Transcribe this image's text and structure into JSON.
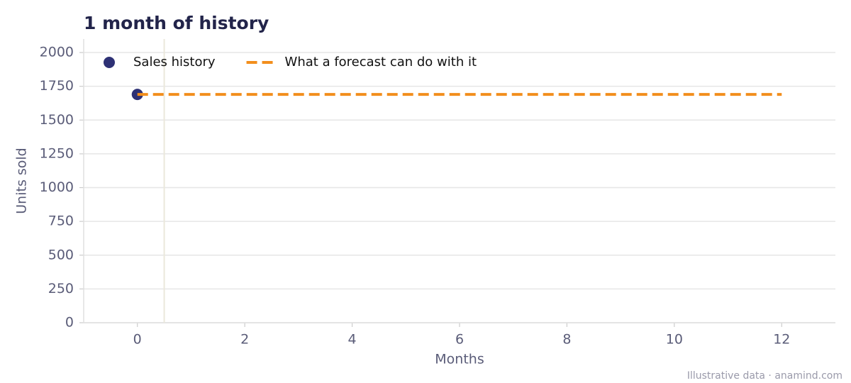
{
  "chart_data": {
    "type": "line",
    "title": "1 month of history",
    "xlabel": "Months",
    "ylabel": "Units sold",
    "footnote": "Illustrative data · anamind.com",
    "xlim": [
      -1,
      13
    ],
    "xticks": [
      0,
      2,
      4,
      6,
      8,
      10,
      12
    ],
    "ylim": [
      0,
      2100
    ],
    "yticks": [
      0,
      250,
      500,
      750,
      1000,
      1250,
      1500,
      1750,
      2000
    ],
    "grid": true,
    "legend": "upper left",
    "divider_x": 0.5,
    "series": [
      {
        "name": "Sales history",
        "color": "#2e3175",
        "style": "marker",
        "x": [
          0
        ],
        "values": [
          1690
        ]
      },
      {
        "name": "What a forecast can do with it",
        "color": "#f28e1c",
        "style": "dashed",
        "x": [
          0,
          12
        ],
        "values": [
          1690,
          1690
        ]
      }
    ]
  }
}
